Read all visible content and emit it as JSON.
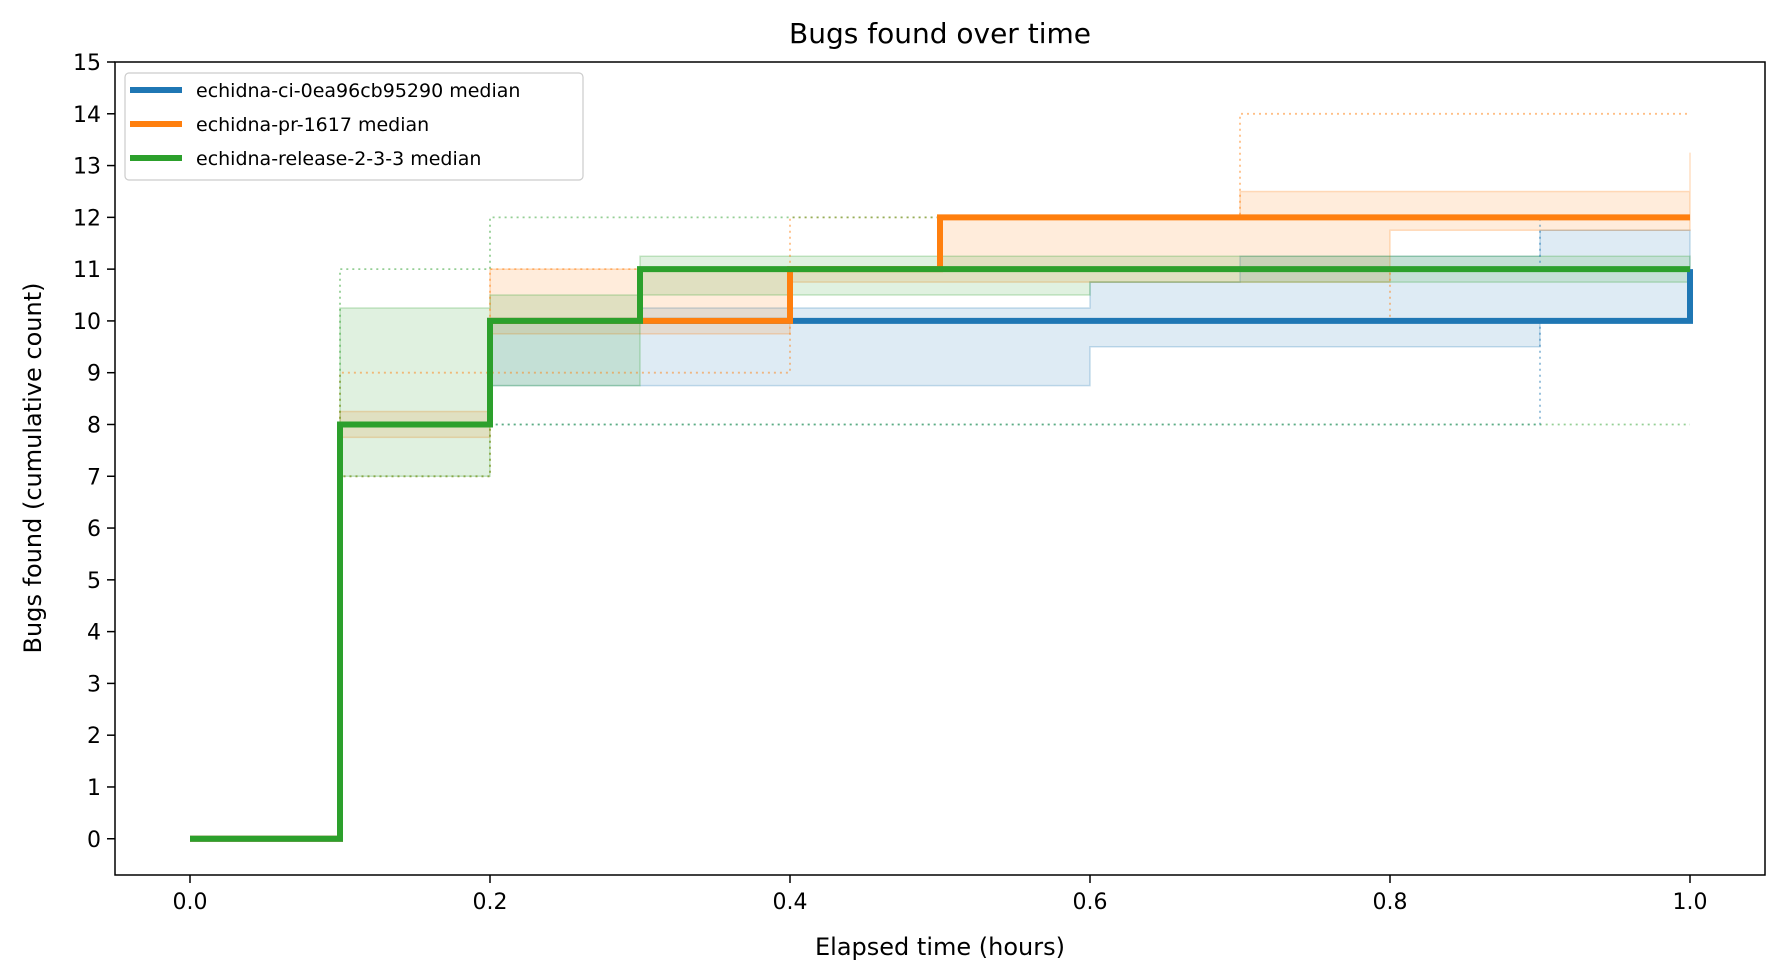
{
  "chart_data": {
    "type": "line",
    "title": "Bugs found over time",
    "xlabel": "Elapsed time (hours)",
    "ylabel": "Bugs found (cumulative count)",
    "xlim": [
      -0.05,
      1.05
    ],
    "ylim": [
      -0.7,
      15
    ],
    "x_ticks": [
      "0.0",
      "0.2",
      "0.4",
      "0.6",
      "0.8",
      "1.0"
    ],
    "y_ticks": [
      "0",
      "1",
      "2",
      "3",
      "4",
      "5",
      "6",
      "7",
      "8",
      "9",
      "10",
      "11",
      "12",
      "13",
      "14",
      "15"
    ],
    "legend_position": "upper-left",
    "grid": false,
    "x": [
      0.0,
      0.1,
      0.2,
      0.3,
      0.4,
      0.5,
      0.6,
      0.7,
      0.8,
      0.9,
      1.0
    ],
    "series": [
      {
        "name": "echidna-ci-0ea96cb95290 median",
        "color": "#1f77b4",
        "median": [
          0,
          8,
          10,
          10,
          10,
          10,
          10,
          10,
          10,
          10,
          11
        ],
        "band_low": [
          0,
          8,
          8.75,
          8.75,
          8.75,
          8.75,
          9.5,
          9.5,
          9.5,
          10,
          10
        ],
        "band_high": [
          0,
          8,
          10,
          10.25,
          10.25,
          10.25,
          10.75,
          11.25,
          11.25,
          11.75,
          11.75
        ],
        "min": [
          0,
          8,
          8,
          8,
          8,
          8,
          8,
          8,
          8,
          10,
          10
        ],
        "max": [
          0,
          8,
          10,
          11,
          11,
          11,
          11,
          11,
          11,
          12,
          12
        ]
      },
      {
        "name": "echidna-pr-1617 median",
        "color": "#ff7f0e",
        "median": [
          0,
          8,
          10,
          10,
          11,
          12,
          12,
          12,
          12,
          12,
          12
        ],
        "band_low": [
          0,
          7.75,
          9.75,
          9.75,
          10.75,
          10.75,
          10.75,
          10.75,
          11.75,
          11.75,
          11.75
        ],
        "band_high": [
          0,
          8.25,
          11,
          11,
          11,
          12,
          12,
          12.5,
          12.5,
          12.5,
          13.25
        ],
        "min": [
          0,
          7,
          9,
          9,
          10,
          10,
          10,
          10,
          11,
          11,
          11
        ],
        "max": [
          0,
          9,
          11,
          11,
          12,
          12,
          12,
          14,
          14,
          14,
          14
        ]
      },
      {
        "name": "echidna-release-2-3-3 median",
        "color": "#2ca02c",
        "median": [
          0,
          8,
          10,
          11,
          11,
          11,
          11,
          11,
          11,
          11,
          11
        ],
        "band_low": [
          0,
          7,
          8.75,
          10.5,
          10.5,
          10.5,
          10.75,
          10.75,
          10.75,
          10.75,
          10.75
        ],
        "band_high": [
          0,
          10.25,
          10.5,
          11.25,
          11.25,
          11.25,
          11.25,
          11.25,
          11.25,
          11.25,
          11.25
        ],
        "min": [
          0,
          7,
          8,
          8,
          8,
          8,
          8,
          8,
          8,
          8,
          8
        ],
        "max": [
          0,
          11,
          12,
          12,
          12,
          12,
          12,
          12,
          12,
          12,
          12
        ]
      }
    ]
  }
}
